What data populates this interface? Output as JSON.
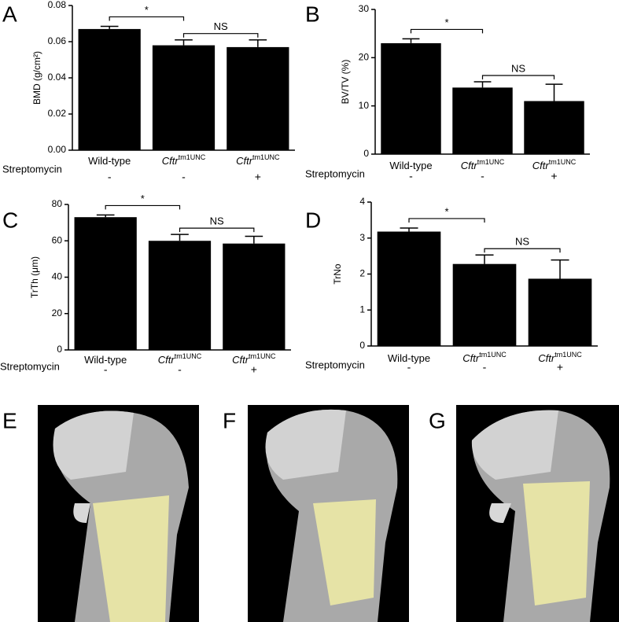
{
  "chart_data": [
    {
      "type": "bar",
      "panel": "A",
      "ylabel": "BMD (g/cm²)",
      "categories": [
        "Wild-type",
        "Cftr",
        "Cftr"
      ],
      "category_superscripts": {
        "1": "tm1UNC",
        "2": "tm1UNC"
      },
      "treatment_label": "Streptomycin",
      "treatment": [
        "-",
        "-",
        "+"
      ],
      "values": [
        0.067,
        0.058,
        0.057
      ],
      "errors": [
        0.0015,
        0.003,
        0.004
      ],
      "color": "#000000",
      "ylim": [
        0,
        0.08
      ],
      "yticks": [
        {
          "value": 0,
          "label": "0.00"
        },
        {
          "value": 0.02,
          "label": "0.02"
        },
        {
          "value": 0.04,
          "label": "0.04"
        },
        {
          "value": 0.06,
          "label": "0.06"
        },
        {
          "value": 0.08,
          "label": "0.08"
        }
      ],
      "annotations": [
        {
          "text": "*",
          "between": [
            0,
            1
          ]
        },
        {
          "text": "NS",
          "between": [
            1,
            2
          ]
        }
      ]
    },
    {
      "type": "bar",
      "panel": "B",
      "ylabel": "BV/TV (%)",
      "categories": [
        "Wild-type",
        "Cftr",
        "Cftr"
      ],
      "category_superscripts": {
        "1": "tm1UNC",
        "2": "tm1UNC"
      },
      "treatment_label": "Streptomycin",
      "treatment": [
        "-",
        "-",
        "+"
      ],
      "values": [
        23,
        13.8,
        11
      ],
      "errors": [
        0.9,
        1.2,
        3.5
      ],
      "color": "#000000",
      "ylim": [
        0,
        30
      ],
      "yticks": [
        0,
        10,
        20,
        30
      ],
      "annotations": [
        {
          "text": "*",
          "between": [
            0,
            1
          ]
        },
        {
          "text": "NS",
          "between": [
            1,
            2
          ]
        }
      ]
    },
    {
      "type": "bar",
      "panel": "C",
      "ylabel": "TrTh (μm)",
      "categories": [
        "Wild-type",
        "Cftr",
        "Cftr"
      ],
      "category_superscripts": {
        "1": "tm1UNC",
        "2": "tm1UNC"
      },
      "treatment_label": "Streptomycin",
      "treatment": [
        "-",
        "-",
        "+"
      ],
      "values": [
        73,
        60,
        58.5
      ],
      "errors": [
        1.2,
        3.5,
        4
      ],
      "color": "#000000",
      "ylim": [
        0,
        80
      ],
      "yticks": [
        0,
        20,
        40,
        60,
        80
      ],
      "annotations": [
        {
          "text": "*",
          "between": [
            0,
            1
          ]
        },
        {
          "text": "NS",
          "between": [
            1,
            2
          ]
        }
      ]
    },
    {
      "type": "bar",
      "panel": "D",
      "ylabel": "TrNo",
      "categories": [
        "Wild-type",
        "Cftr",
        "Cftr"
      ],
      "category_superscripts": {
        "1": "tm1UNC",
        "2": "tm1UNC"
      },
      "treatment_label": "Streptomycin",
      "treatment": [
        "-",
        "-",
        "+"
      ],
      "values": [
        3.18,
        2.28,
        1.87
      ],
      "errors": [
        0.1,
        0.25,
        0.52
      ],
      "color": "#000000",
      "ylim": [
        0,
        4
      ],
      "yticks": [
        0,
        1,
        2,
        3,
        4
      ],
      "annotations": [
        {
          "text": "*",
          "between": [
            0,
            1
          ]
        },
        {
          "text": "NS",
          "between": [
            1,
            2
          ]
        }
      ]
    }
  ],
  "images": [
    {
      "panel": "E"
    },
    {
      "panel": "F"
    },
    {
      "panel": "G"
    }
  ]
}
